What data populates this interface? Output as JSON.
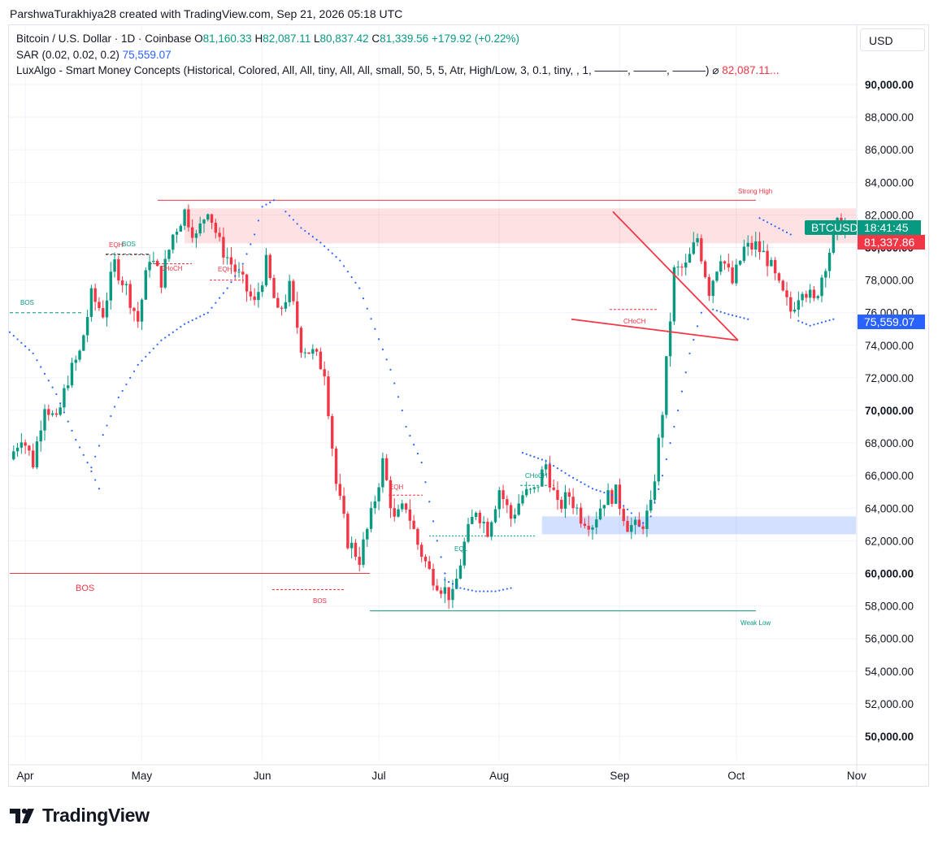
{
  "credit": "ParshwaTurakhiya28 created with TradingView.com, Sep 21, 2026 05:18 UTC",
  "legend": {
    "symbol": "Bitcoin / U.S. Dollar · 1D · Coinbase",
    "open_label": "O",
    "open": "81,160.33",
    "high_label": "H",
    "high": "82,087.11",
    "low_label": "L",
    "low": "80,837.42",
    "close_label": "C",
    "close": "81,339.56",
    "change": "+179.92 (+0.22%)",
    "sar_label": "SAR (0.02, 0.02, 0.2)",
    "sar_value": "75,559.07",
    "lux_label": "LuxAlgo - Smart Money Concepts (Historical, Colored, All, All, tiny, All, All, small, 50, 5, 5, Atr, High/Low, 3, 0.1, tiny, , 1, ———, ———, ———)",
    "lux_icon": "⌀",
    "lux_value": "82,087.11..."
  },
  "currency": "USD",
  "price_tags": {
    "symbol": "BTCUSD",
    "countdown": "18:41:45",
    "close": "81,337.86",
    "sar": "75,559.07"
  },
  "logo_text": "TradingView",
  "colors": {
    "up": "#089981",
    "down": "#f23645",
    "sar": "#2962ff",
    "grid": "#f0f3fa"
  },
  "chart_data": {
    "type": "candlestick",
    "y_ticks": [
      "90,000.00",
      "88,000.00",
      "86,000.00",
      "84,000.00",
      "82,000.00",
      "80,000.00",
      "78,000.00",
      "76,000.00",
      "74,000.00",
      "72,000.00",
      "70,000.00",
      "68,000.00",
      "66,000.00",
      "64,000.00",
      "62,000.00",
      "60,000.00",
      "58,000.00",
      "56,000.00",
      "54,000.00",
      "52,000.00",
      "50,000.00"
    ],
    "x_ticks": [
      "Apr",
      "May",
      "Jun",
      "Jul",
      "Aug",
      "Sep",
      "Oct",
      "Nov"
    ],
    "ylim": [
      48500,
      91500
    ],
    "close_path": [
      [
        0,
        67000
      ],
      [
        3,
        68500
      ],
      [
        6,
        66800
      ],
      [
        9,
        70500
      ],
      [
        12,
        69200
      ],
      [
        15,
        72000
      ],
      [
        18,
        73500
      ],
      [
        21,
        77000
      ],
      [
        24,
        76000
      ],
      [
        27,
        79000
      ],
      [
        30,
        77500
      ],
      [
        33,
        75500
      ],
      [
        36,
        79500
      ],
      [
        39,
        78000
      ],
      [
        42,
        80800
      ],
      [
        45,
        82200
      ],
      [
        48,
        80600
      ],
      [
        51,
        82500
      ],
      [
        54,
        80200
      ],
      [
        57,
        79000
      ],
      [
        60,
        77800
      ],
      [
        63,
        76500
      ],
      [
        66,
        79000
      ],
      [
        69,
        75800
      ],
      [
        72,
        77500
      ],
      [
        75,
        74000
      ],
      [
        78,
        73500
      ],
      [
        81,
        72500
      ],
      [
        84,
        65500
      ],
      [
        87,
        62000
      ],
      [
        90,
        60900
      ],
      [
        93,
        63500
      ],
      [
        96,
        66800
      ],
      [
        99,
        63200
      ],
      [
        102,
        64200
      ],
      [
        105,
        61800
      ],
      [
        108,
        60100
      ],
      [
        111,
        59200
      ],
      [
        114,
        58500
      ],
      [
        117,
        61800
      ],
      [
        120,
        64000
      ],
      [
        123,
        62700
      ],
      [
        126,
        65200
      ],
      [
        129,
        63400
      ],
      [
        132,
        64800
      ],
      [
        135,
        65000
      ],
      [
        138,
        66700
      ],
      [
        141,
        64000
      ],
      [
        144,
        64800
      ],
      [
        147,
        63500
      ],
      [
        150,
        63100
      ],
      [
        153,
        64600
      ],
      [
        156,
        64900
      ],
      [
        159,
        63000
      ],
      [
        162,
        62700
      ],
      [
        165,
        64000
      ],
      [
        168,
        70000
      ],
      [
        171,
        78500
      ],
      [
        174,
        78800
      ],
      [
        177,
        80600
      ],
      [
        180,
        77400
      ],
      [
        183,
        79600
      ],
      [
        186,
        77800
      ],
      [
        189,
        79900
      ],
      [
        192,
        80100
      ],
      [
        195,
        79300
      ],
      [
        198,
        77500
      ],
      [
        201,
        76100
      ],
      [
        204,
        77700
      ],
      [
        207,
        76600
      ],
      [
        210,
        79100
      ],
      [
        213,
        81300
      ],
      [
        216,
        81340
      ]
    ],
    "sar_segments": [
      [
        [
          0,
          74800
        ],
        [
          6,
          73500
        ],
        [
          12,
          71000
        ],
        [
          17,
          68200
        ],
        [
          20,
          66800
        ],
        [
          23,
          65200
        ]
      ],
      [
        [
          21,
          66500
        ],
        [
          24,
          68500
        ],
        [
          28,
          70800
        ],
        [
          33,
          72800
        ],
        [
          39,
          74300
        ],
        [
          45,
          75300
        ],
        [
          51,
          76000
        ],
        [
          56,
          77500
        ],
        [
          60,
          79000
        ],
        [
          63,
          80800
        ],
        [
          65,
          82500
        ],
        [
          68,
          82900
        ]
      ],
      [
        [
          71,
          82200
        ],
        [
          75,
          81200
        ],
        [
          80,
          80300
        ],
        [
          85,
          79200
        ],
        [
          90,
          77500
        ],
        [
          94,
          75000
        ],
        [
          98,
          72500
        ],
        [
          101,
          70000
        ]
      ],
      [
        [
          102,
          69000
        ],
        [
          106,
          66800
        ],
        [
          110,
          62000
        ],
        [
          112,
          60000
        ]
      ],
      [
        [
          112,
          59600
        ],
        [
          116,
          59100
        ],
        [
          120,
          58900
        ],
        [
          125,
          58900
        ],
        [
          129,
          59100
        ]
      ],
      [
        [
          132,
          67400
        ],
        [
          138,
          66900
        ],
        [
          144,
          66000
        ],
        [
          150,
          65200
        ],
        [
          155,
          64800
        ]
      ],
      [
        [
          156,
          64600
        ],
        [
          160,
          63700
        ]
      ],
      [
        [
          162,
          62900
        ],
        [
          165,
          63500
        ],
        [
          168,
          66000
        ],
        [
          172,
          70000
        ],
        [
          175,
          73500
        ],
        [
          178,
          76000
        ]
      ],
      [
        [
          181,
          76200
        ],
        [
          185,
          75900
        ],
        [
          190,
          75600
        ]
      ],
      [
        [
          193,
          81800
        ],
        [
          197,
          81300
        ],
        [
          201,
          80800
        ]
      ],
      [
        [
          203,
          75500
        ],
        [
          206,
          75200
        ],
        [
          209,
          75400
        ],
        [
          212,
          75600
        ]
      ]
    ],
    "annotations": [
      {
        "text": "Strong High",
        "type": "level",
        "value": 82900
      },
      {
        "text": "Weak Low",
        "type": "level",
        "value": 57700
      },
      {
        "text": "BOS",
        "type": "structure"
      },
      {
        "text": "BOS",
        "type": "structure"
      },
      {
        "text": "EQH",
        "type": "structure"
      },
      {
        "text": "CHoCH",
        "type": "structure"
      },
      {
        "text": "EQH",
        "type": "structure"
      },
      {
        "text": "BOS",
        "type": "structure"
      },
      {
        "text": "BOS",
        "type": "structure"
      },
      {
        "text": "EQH",
        "type": "structure"
      },
      {
        "text": "EQL",
        "type": "structure"
      },
      {
        "text": "CHoCH",
        "type": "structure"
      },
      {
        "text": "CHoCH",
        "type": "structure"
      }
    ],
    "zones": [
      {
        "type": "supply",
        "from": 80250,
        "to": 82400,
        "color": "#f23645"
      },
      {
        "type": "demand",
        "from": 62400,
        "to": 63500,
        "color": "#2962ff"
      }
    ],
    "triangle": {
      "apex_value": 74300,
      "top_value": 82200,
      "bottom_value": 75600
    }
  }
}
